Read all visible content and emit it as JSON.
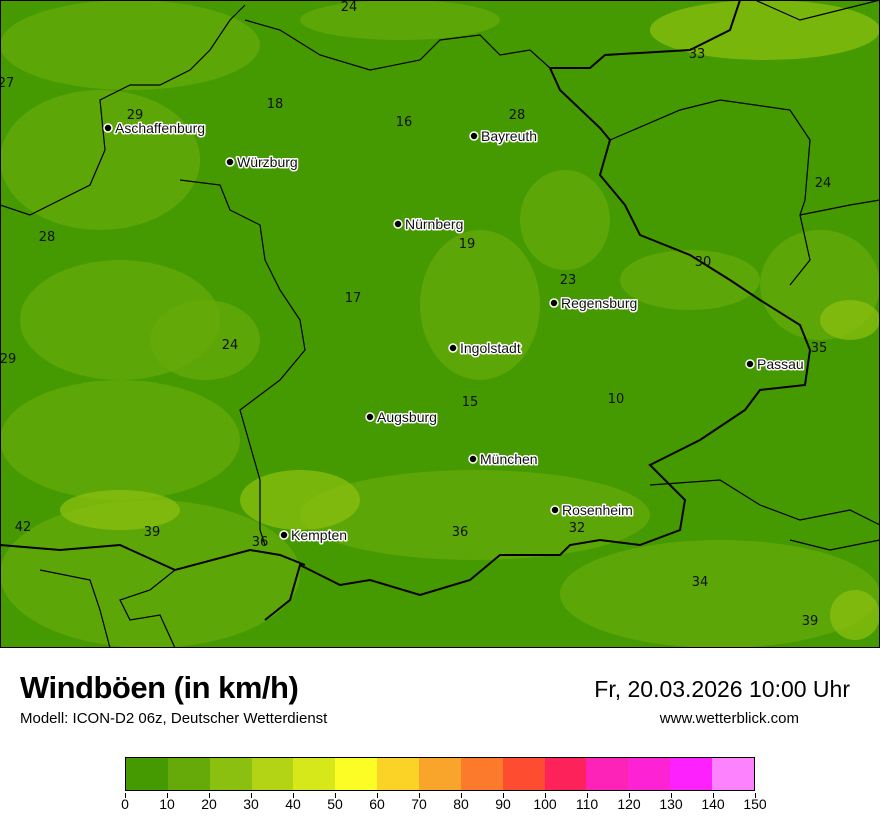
{
  "title": "Windböen (in km/h)",
  "subtitle": "Modell: ICON-D2 06z, Deutscher Wetterdienst",
  "datetime": "Fr, 20.03.2026 10:00 Uhr",
  "website": "www.wetterblick.com",
  "legend": {
    "colors": [
      "#449a00",
      "#66aa0a",
      "#8bbf10",
      "#b2d414",
      "#d6e81a",
      "#fdfd26",
      "#fbd226",
      "#f9a42b",
      "#fb7a2b",
      "#fd4c30",
      "#fd2259",
      "#fd22b8",
      "#fd22d4",
      "#fd22fd",
      "#fd82fd"
    ],
    "ticks": [
      "0",
      "10",
      "20",
      "30",
      "40",
      "50",
      "60",
      "70",
      "80",
      "90",
      "100",
      "110",
      "120",
      "130",
      "140",
      "150"
    ]
  },
  "map": {
    "colors": {
      "base": "#449a00",
      "light": "#66aa0a",
      "lighter": "#8bbf10"
    },
    "cities": [
      "Aschaffenburg",
      "Würzburg",
      "Bayreuth",
      "Nürnberg",
      "Regensburg",
      "Ingolstadt",
      "Passau",
      "Augsburg",
      "München",
      "Rosenheim",
      "Kempten"
    ],
    "values": [
      "24",
      "27",
      "29",
      "18",
      "16",
      "28",
      "33",
      "24",
      "28",
      "19",
      "23",
      "30",
      "17",
      "24",
      "29",
      "35",
      "15",
      "10",
      "42",
      "39",
      "36",
      "36",
      "32",
      "34",
      "39"
    ]
  }
}
